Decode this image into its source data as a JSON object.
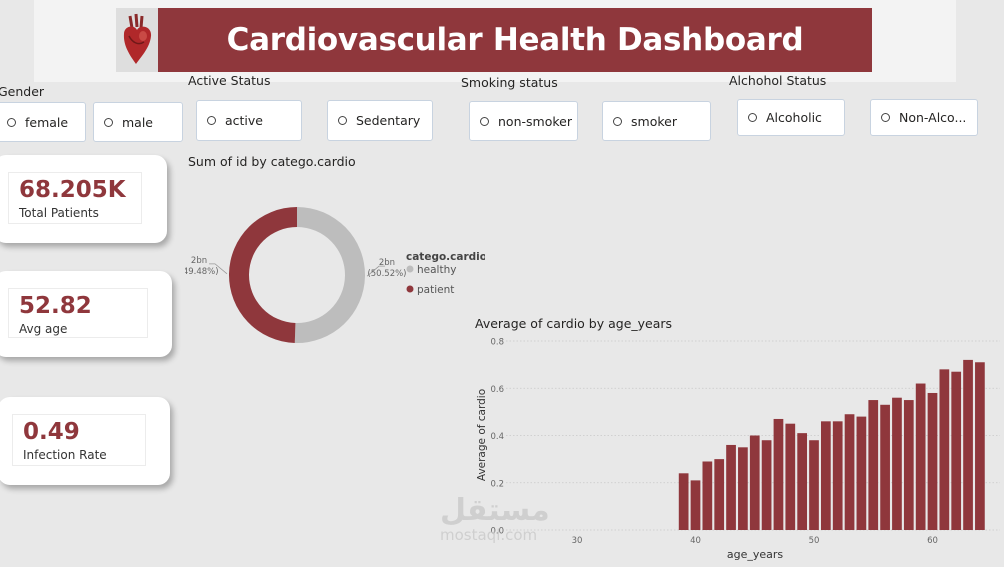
{
  "header": {
    "title": "Cardiovascular Health Dashboard",
    "image_icon": "anatomical-heart-icon"
  },
  "slicers": {
    "gender": {
      "title": "Gender",
      "options": [
        "female",
        "male"
      ]
    },
    "active": {
      "title": "Active Status",
      "options": [
        "active",
        "Sedentary"
      ]
    },
    "smoking": {
      "title": "Smoking status",
      "options": [
        "non-smoker",
        "smoker"
      ]
    },
    "alcohol": {
      "title": "Alchohol Status",
      "options": [
        "Alcoholic",
        "Non-Alco..."
      ]
    }
  },
  "cards": {
    "total_patients": {
      "value": "68.205K",
      "label": "Total Patients"
    },
    "avg_age": {
      "value": "52.82",
      "label": "Avg age"
    },
    "infection_rate": {
      "value": "0.49",
      "label": "Infection Rate"
    }
  },
  "colors": {
    "accent": "#8f373c",
    "healthy": "#bdbdbd",
    "background": "#e8e8e8"
  },
  "watermark": {
    "arabic": "مستقل",
    "latin": "mostaql.com"
  },
  "chart_data": [
    {
      "type": "pie",
      "variant": "donut",
      "title": "Sum of id by catego.cardio",
      "legend_title": "catego.cardio",
      "legend_position": "right",
      "slices": [
        {
          "label": "healthy",
          "value_label": "2bn",
          "pct_label": "(50.52%)",
          "percent": 50.52,
          "color": "#bdbdbd"
        },
        {
          "label": "patient",
          "value_label": "2bn",
          "pct_label": "(49.48%)",
          "percent": 49.48,
          "color": "#8f373c"
        }
      ]
    },
    {
      "type": "bar",
      "title": "Average of cardio by age_years",
      "xlabel": "age_years",
      "ylabel": "Average of cardio",
      "xlim": [
        30,
        65
      ],
      "ylim": [
        0,
        0.8
      ],
      "xticks": [
        30,
        40,
        50,
        60
      ],
      "yticks": [
        0,
        0.2,
        0.4,
        0.6,
        0.8
      ],
      "ytick_labels": [
        "0.0",
        "0.2",
        "0.4",
        "0.6",
        "0.8"
      ],
      "grid": true,
      "color": "#8f373c",
      "x": [
        39,
        40,
        41,
        42,
        43,
        44,
        45,
        46,
        47,
        48,
        49,
        50,
        51,
        52,
        53,
        54,
        55,
        56,
        57,
        58,
        59,
        60,
        61,
        62,
        63,
        64
      ],
      "values": [
        0.24,
        0.21,
        0.29,
        0.3,
        0.36,
        0.35,
        0.4,
        0.38,
        0.47,
        0.45,
        0.41,
        0.38,
        0.46,
        0.46,
        0.49,
        0.48,
        0.55,
        0.53,
        0.56,
        0.55,
        0.62,
        0.58,
        0.68,
        0.67,
        0.72,
        0.71
      ]
    }
  ]
}
